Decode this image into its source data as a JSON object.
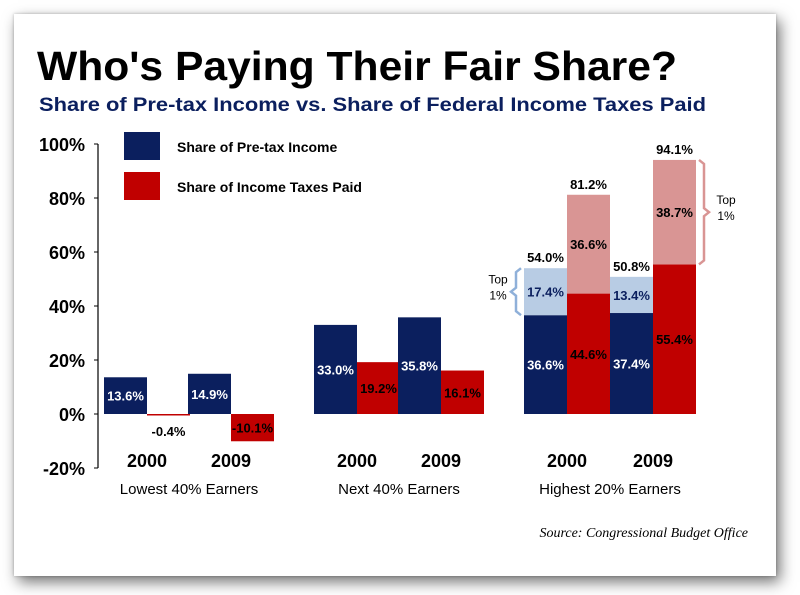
{
  "colors": {
    "income": "#0b1f5e",
    "taxes": "#c00000",
    "top1_income": "#b8cce4",
    "top1_taxes": "#d99594",
    "bracket_income": "#8fb0d9",
    "bracket_taxes": "#d99594"
  },
  "header": {
    "title": "Who's Paying Their Fair Share?",
    "subtitle": "Share of Pre-tax Income vs. Share of Federal Income Taxes Paid"
  },
  "source": "Source:  Congressional Budget Office",
  "chart_data": {
    "type": "bar",
    "ylim": [
      -20,
      100
    ],
    "yticks": [
      "100%",
      "80%",
      "60%",
      "40%",
      "20%",
      "0%",
      "-20%"
    ],
    "legend": [
      "Share of Pre-tax Income",
      "Share of Income Taxes Paid"
    ],
    "legend_position": "top-left",
    "groups": [
      {
        "label": "Lowest 40% Earners",
        "years": [
          {
            "year": "2000",
            "income": 13.6,
            "income_label": "13.6%",
            "taxes": -0.4,
            "taxes_label": "-0.4%"
          },
          {
            "year": "2009",
            "income": 14.9,
            "income_label": "14.9%",
            "taxes": -10.1,
            "taxes_label": "-10.1%"
          }
        ]
      },
      {
        "label": "Next 40% Earners",
        "years": [
          {
            "year": "2000",
            "income": 33.0,
            "income_label": "33.0%",
            "taxes": 19.2,
            "taxes_label": "19.2%"
          },
          {
            "year": "2009",
            "income": 35.8,
            "income_label": "35.8%",
            "taxes": 16.1,
            "taxes_label": "16.1%"
          }
        ]
      },
      {
        "label": "Highest 20% Earners",
        "years": [
          {
            "year": "2000",
            "income": 36.6,
            "income_label": "36.6%",
            "income_top1": 17.4,
            "income_top1_label": "17.4%",
            "income_total_label": "54.0%",
            "taxes": 44.6,
            "taxes_label": "44.6%",
            "taxes_top1": 36.6,
            "taxes_top1_label": "36.6%",
            "taxes_total_label": "81.2%"
          },
          {
            "year": "2009",
            "income": 37.4,
            "income_label": "37.4%",
            "income_top1": 13.4,
            "income_top1_label": "13.4%",
            "income_total_label": "50.8%",
            "taxes": 55.4,
            "taxes_label": "55.4%",
            "taxes_top1": 38.7,
            "taxes_top1_label": "38.7%",
            "taxes_total_label": "94.1%"
          }
        ]
      }
    ],
    "annotations": [
      {
        "lines": [
          "Top",
          "1%"
        ]
      },
      {
        "lines": [
          "Top",
          "1%"
        ]
      }
    ]
  }
}
